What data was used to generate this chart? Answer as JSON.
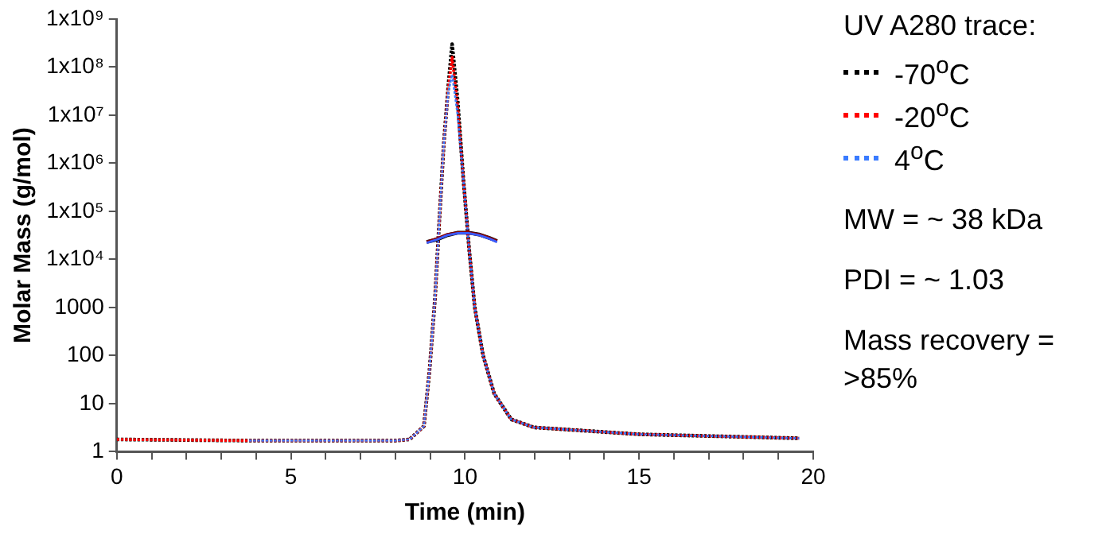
{
  "chart_data": {
    "type": "line",
    "xlabel": "Time (min)",
    "ylabel": "Molar Mass (g/mol)",
    "log": "y",
    "xlim": [
      0,
      20
    ],
    "xticks": [
      0,
      {
        "value": 1,
        "label": null
      },
      {
        "value": 2,
        "label": null
      },
      {
        "value": 3,
        "label": null
      },
      {
        "value": 4,
        "label": null
      },
      5,
      {
        "value": 6,
        "label": null
      },
      {
        "value": 7,
        "label": null
      },
      {
        "value": 8,
        "label": null
      },
      {
        "value": 9,
        "label": null
      },
      10,
      {
        "value": 11,
        "label": null
      },
      {
        "value": 12,
        "label": null
      },
      {
        "value": 13,
        "label": null
      },
      {
        "value": 14,
        "label": null
      },
      15,
      {
        "value": 16,
        "label": null
      },
      {
        "value": 17,
        "label": null
      },
      {
        "value": 18,
        "label": null
      },
      {
        "value": 19,
        "label": null
      },
      20
    ],
    "ylim": [
      1,
      1000000000
    ],
    "yticks": [
      1,
      10,
      100,
      1000,
      {
        "value": 10000,
        "label": "1x10⁴"
      },
      {
        "value": 100000,
        "label": "1x10⁵"
      },
      {
        "value": 1000000,
        "label": "1x10⁶"
      },
      {
        "value": 10000000,
        "label": "1x10⁷"
      },
      {
        "value": 100000000,
        "label": "1x10⁸"
      },
      {
        "value": 1000000000,
        "label": "1x10⁹"
      }
    ],
    "grid": false,
    "legend": "right",
    "legend_title": "UV A280 trace:",
    "line_style": "dotted",
    "marker": "none",
    "series": [
      {
        "name": "-70$^{o}$C",
        "color": "#000000",
        "x": [
          0,
          3.8,
          8.0,
          8.41,
          8.82,
          8.98,
          9.14,
          9.26,
          9.39,
          9.52,
          9.63,
          9.79,
          9.95,
          10.12,
          10.28,
          10.52,
          10.84,
          11.33,
          11.98,
          15,
          19.6
        ],
        "values": [
          1.8,
          1.7,
          1.7,
          1.8,
          3.4,
          48,
          1600,
          60000,
          2500000,
          40000000,
          300000000,
          20000000,
          500000,
          16000,
          1000,
          100,
          16,
          4.7,
          3.2,
          2.3,
          1.9
        ]
      },
      {
        "name": "-20$^{o}$C",
        "color": "#ff0000",
        "x": [
          0,
          3.8,
          8.0,
          8.41,
          8.82,
          8.98,
          9.14,
          9.26,
          9.39,
          9.52,
          9.63,
          9.79,
          9.95,
          10.12,
          10.28,
          10.52,
          10.84,
          11.33,
          11.98,
          15,
          19.6
        ],
        "values": [
          1.8,
          1.7,
          1.7,
          1.8,
          3.4,
          48,
          1600,
          60000,
          2500000,
          35000000,
          160000000,
          15000000,
          500000,
          16000,
          1000,
          100,
          16,
          4.7,
          3.2,
          2.3,
          1.9
        ]
      },
      {
        "name": "4$^{o}$C",
        "color": "#3a7bff",
        "x": [
          3.8,
          8.0,
          8.41,
          8.82,
          8.98,
          9.14,
          9.26,
          9.39,
          9.52,
          9.63,
          9.79,
          9.95,
          10.12,
          10.28,
          10.52,
          10.84,
          11.33,
          11.98,
          15,
          19.6
        ],
        "values": [
          1.7,
          1.7,
          1.8,
          3.4,
          48,
          1600,
          60000,
          2500000,
          30000000,
          70000000,
          10000000,
          500000,
          16000,
          1000,
          100,
          16,
          4.7,
          3.2,
          2.3,
          1.9
        ]
      },
      {
        "color": "#000000",
        "line_style": "solid",
        "x": [
          8.9,
          9.2,
          9.5,
          9.8,
          10.1,
          10.4,
          10.7,
          10.92
        ],
        "values": [
          23000,
          26000,
          32000,
          36000,
          36000,
          33000,
          28000,
          24000
        ]
      },
      {
        "color": "#8b0000",
        "line_style": "solid",
        "x": [
          8.9,
          9.2,
          9.5,
          9.8,
          10.1,
          10.4,
          10.7,
          10.92
        ],
        "values": [
          23000,
          27000,
          33000,
          36000,
          36000,
          33000,
          28000,
          24000
        ]
      },
      {
        "color": "#3a5bff",
        "line_style": "solid",
        "x": [
          8.9,
          9.2,
          9.5,
          9.8,
          10.1,
          10.4,
          10.7,
          10.92
        ],
        "values": [
          22000,
          26000,
          32000,
          35000,
          35000,
          32000,
          27000,
          23000
        ]
      }
    ],
    "annotations": [
      "MW = ~ 38 kDa",
      "PDI = ~ 1.03",
      "Mass recovery = >85%"
    ]
  }
}
